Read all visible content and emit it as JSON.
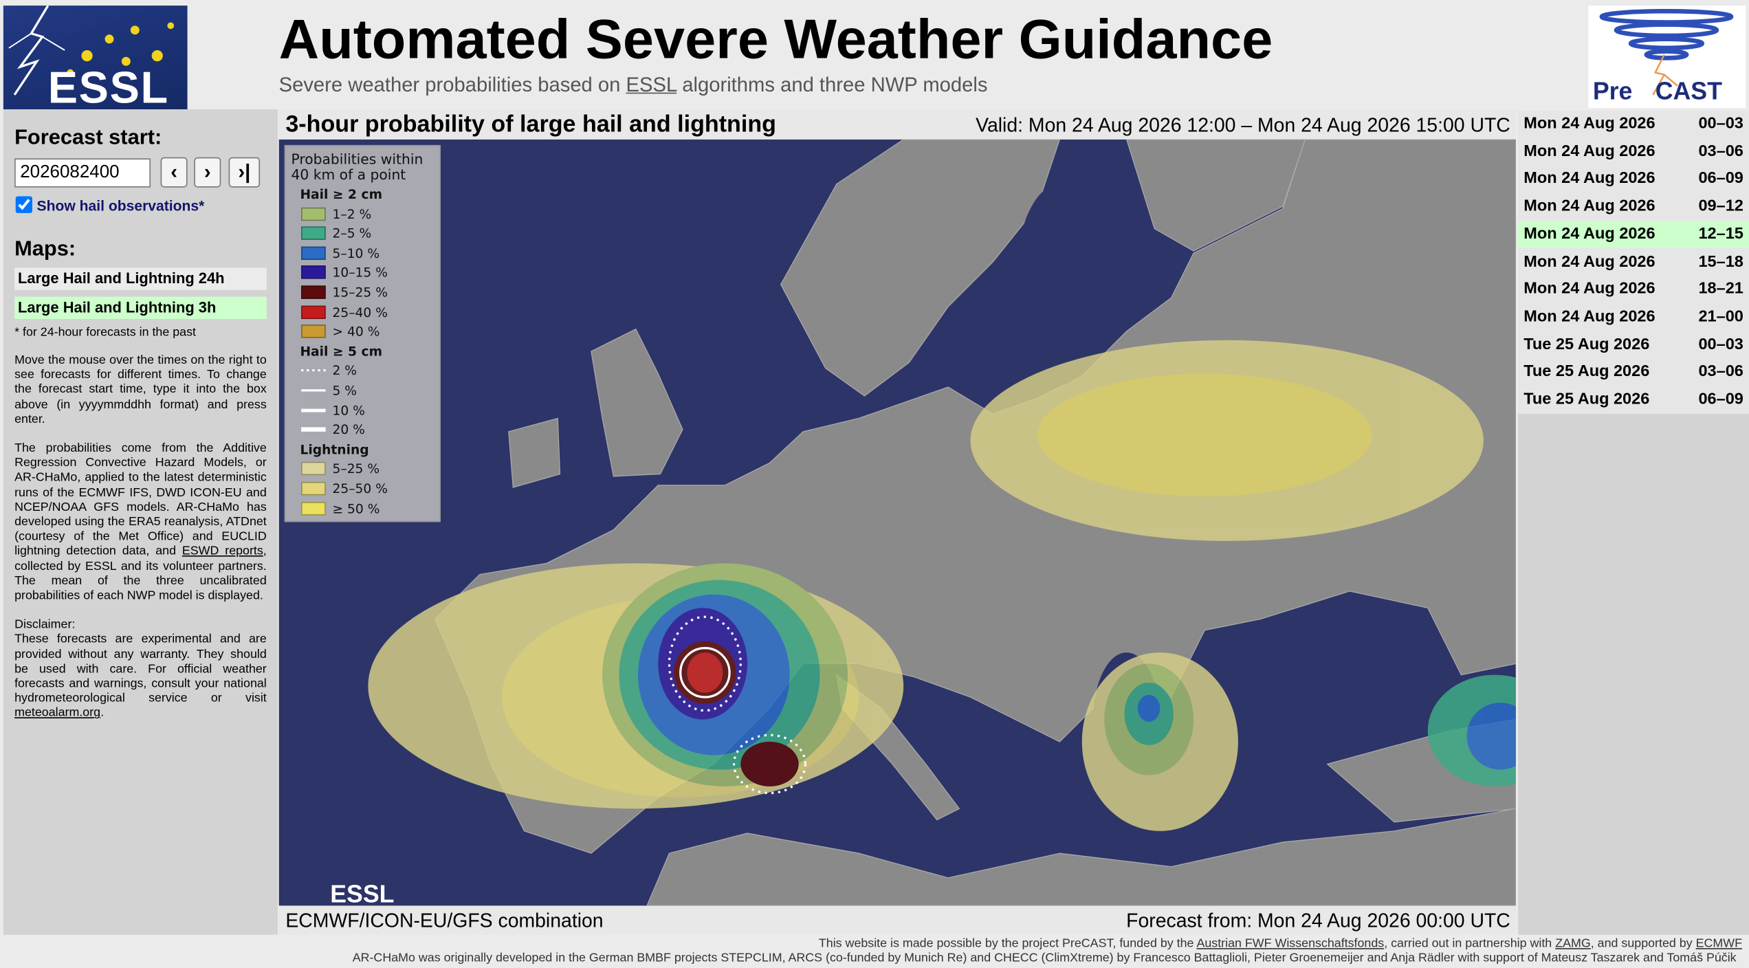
{
  "header": {
    "title": "Automated Severe Weather Guidance",
    "subtitle": [
      {
        "text": "Severe weather probabilities based on "
      },
      {
        "text": "ESSL",
        "link": true
      },
      {
        "text": " algorithms and three NWP models"
      }
    ],
    "logo_left": "ESSL",
    "logo_right": [
      "Pre",
      "CAST"
    ]
  },
  "sidebar": {
    "forecast_start_label": "Forecast start:",
    "forecast_start_value": "2026082400",
    "buttons": [
      "‹",
      "›",
      "›|"
    ],
    "show_hail_label": "Show hail observations*",
    "show_hail_checked": true,
    "maps_label": "Maps:",
    "maps": [
      {
        "label": "Large Hail and Lightning 24h",
        "selected": false
      },
      {
        "label": "Large Hail and Lightning 3h",
        "selected": true
      }
    ],
    "footnote": "* for 24-hour forecasts in the past",
    "paragraphs": [
      {
        "segments": [
          {
            "text": "Move the mouse over the times on the right to see forecasts for different times. To change the forecast start time, type it into the box above (in yyyymmddhh format) and press enter."
          }
        ]
      },
      {
        "segments": [
          {
            "text": "The probabilities come from the Additive Regression Convective Hazard Models, or AR-CHaMo, applied to the latest deterministic runs of the ECMWF IFS, DWD ICON-EU and NCEP/NOAA GFS models. AR-CHaMo has developed using the ERA5 reanalysis, ATDnet (courtesy of the Met Office) and EUCLID lightning detection data, and "
          },
          {
            "text": "ESWD reports",
            "link": true
          },
          {
            "text": ", collected by ESSL and its volunteer partners. The mean of the three uncalibrated probabilities of each NWP model is displayed."
          }
        ]
      },
      {
        "heading": "Disclaimer:",
        "segments": [
          {
            "text": "These forecasts are experimental and are provided without any warranty. They should be used with care. For official weather forecasts and warnings, consult your national hydrometeorological service or visit "
          },
          {
            "text": "meteoalarm.org",
            "link": true
          },
          {
            "text": "."
          }
        ]
      }
    ]
  },
  "map": {
    "title": "3-hour probability of large hail and lightning",
    "valid": "Valid: Mon 24 Aug 2026 12:00 – Mon 24 Aug 2026 15:00 UTC",
    "source": "ECMWF/ICON-EU/GFS combination",
    "forecast_from": "Forecast from: Mon 24 Aug 2026 00:00 UTC",
    "watermark": "ESSL",
    "legend": {
      "heading": [
        "Probabilities within",
        "40 km of a point"
      ],
      "groups": [
        {
          "title": "Hail ≥ 2 cm",
          "items": [
            {
              "label": "1–2 %",
              "color": "#a3bd6e"
            },
            {
              "label": "2–5 %",
              "color": "#3eaa86"
            },
            {
              "label": "5–10 %",
              "color": "#2a6cc6"
            },
            {
              "label": "10–15 %",
              "color": "#2c1a9c"
            },
            {
              "label": "15–25 %",
              "color": "#5c0c0c"
            },
            {
              "label": "25–40 %",
              "color": "#c41c1c"
            },
            {
              "label": "> 40 %",
              "color": "#c99a32"
            }
          ]
        },
        {
          "title": "Hail ≥ 5 cm",
          "items": [
            {
              "label": "2 %",
              "color": "#ffffff"
            },
            {
              "label": "5 %",
              "color": "#ffffff"
            },
            {
              "label": "10 %",
              "color": "#ffffff"
            },
            {
              "label": "20 %",
              "color": "#ffffff"
            }
          ]
        },
        {
          "title": "Lightning",
          "items": [
            {
              "label": "5–25 %",
              "color": "#ddd69a"
            },
            {
              "label": "25–50 %",
              "color": "#e3d77a"
            },
            {
              "label": "≥ 50 %",
              "color": "#ece15f"
            }
          ]
        }
      ]
    }
  },
  "times": {
    "selected": 4,
    "rows": [
      [
        "Mon 24 Aug 2026",
        "00–03"
      ],
      [
        "Mon 24 Aug 2026",
        "03–06"
      ],
      [
        "Mon 24 Aug 2026",
        "06–09"
      ],
      [
        "Mon 24 Aug 2026",
        "09–12"
      ],
      [
        "Mon 24 Aug 2026",
        "12–15"
      ],
      [
        "Mon 24 Aug 2026",
        "15–18"
      ],
      [
        "Mon 24 Aug 2026",
        "18–21"
      ],
      [
        "Mon 24 Aug 2026",
        "21–00"
      ],
      [
        "Tue 25 Aug 2026",
        "00–03"
      ],
      [
        "Tue 25 Aug 2026",
        "03–06"
      ],
      [
        "Tue 25 Aug 2026",
        "06–09"
      ]
    ]
  },
  "footer": [
    [
      {
        "text": "This website is made possible by the project PreCAST, funded by the "
      },
      {
        "text": "Austrian FWF Wissenschaftsfonds",
        "link": true
      },
      {
        "text": ", carried out in partnership with "
      },
      {
        "text": "ZAMG",
        "link": true
      },
      {
        "text": ", and supported by "
      },
      {
        "text": "ECMWF",
        "link": true
      }
    ],
    [
      {
        "text": "AR-CHaMo was originally developed in the German BMBF projects STEPCLIM, ARCS (co-funded by Munich Re) and CHECC (ClimXtreme) by Francesco Battaglioli, Pieter Groenemeijer and Anja Rädler with support of Mateusz Taszarek and Tomáš Púčik"
      }
    ]
  ]
}
